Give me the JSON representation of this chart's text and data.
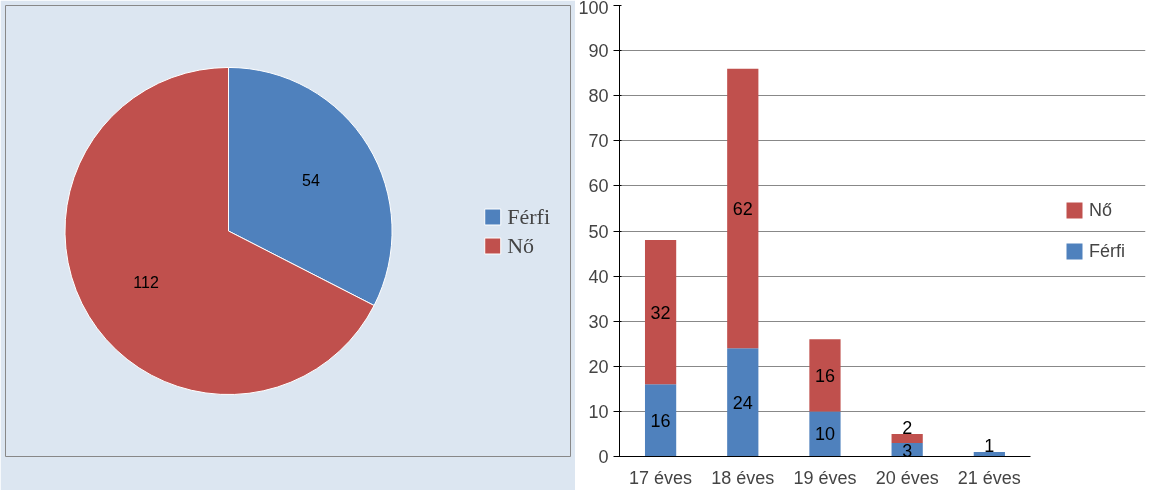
{
  "chart_data": [
    {
      "type": "pie",
      "categories": [
        "Férfi",
        "Nő"
      ],
      "values": [
        54,
        112
      ],
      "colors": [
        "#4f81bd",
        "#c0504d"
      ],
      "data_labels": true,
      "legend": "right"
    },
    {
      "type": "bar",
      "stacked": true,
      "categories": [
        "17 éves",
        "18 éves",
        "19 éves",
        "20 éves",
        "21 éves"
      ],
      "series": [
        {
          "name": "Férfi",
          "color": "#4f81bd",
          "values": [
            16,
            24,
            10,
            3,
            1
          ]
        },
        {
          "name": "Nő",
          "color": "#c0504d",
          "values": [
            32,
            62,
            16,
            2,
            null
          ]
        }
      ],
      "ylim": [
        0,
        100
      ],
      "yticks": [
        0,
        10,
        20,
        30,
        40,
        50,
        60,
        70,
        80,
        90,
        100
      ],
      "grid": "y",
      "data_labels": true,
      "legend": "right"
    }
  ]
}
